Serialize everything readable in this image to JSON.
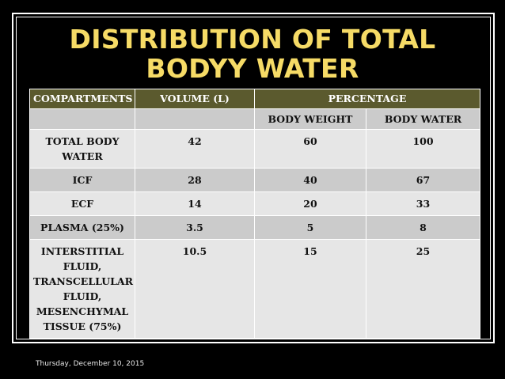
{
  "slide": {
    "title_line1": "DISTRIBUTION OF TOTAL",
    "title_line2": "BODYY WATER",
    "footer_date": "Thursday, December 10, 2015"
  },
  "table": {
    "headers": {
      "compartments": "COMPARTMENTS",
      "volume": "VOLUME (L)",
      "percentage": "PERCENTAGE"
    },
    "subheaders": {
      "body_weight": "BODY WEIGHT",
      "body_water": "BODY WATER"
    },
    "rows": [
      {
        "compartment": "TOTAL BODY WATER",
        "volume": "42",
        "body_weight": "60",
        "body_water": "100"
      },
      {
        "compartment": "ICF",
        "volume": "28",
        "body_weight": "40",
        "body_water": "67"
      },
      {
        "compartment": "ECF",
        "volume": "14",
        "body_weight": "20",
        "body_water": "33"
      },
      {
        "compartment": "PLASMA (25%)",
        "volume": "3.5",
        "body_weight": "5",
        "body_water": "8"
      },
      {
        "compartment": "INTERSTITIAL FLUID, TRANSCELLULAR FLUID, MESENCHYMAL TISSUE (75%)",
        "volume": "10.5",
        "body_weight": "15",
        "body_water": "25"
      }
    ]
  },
  "colors": {
    "title": "#f6db66",
    "header_bg": "#5b5a2e",
    "row_light": "#e6e6e6",
    "row_dark": "#cbcbcb",
    "background": "#000000"
  }
}
